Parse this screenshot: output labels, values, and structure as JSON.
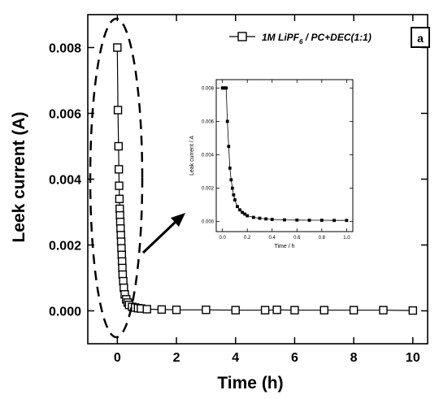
{
  "chart_data": [
    {
      "type": "scatter",
      "panel": "main",
      "title": "",
      "xlabel": "Time (h)",
      "ylabel": "Leek current (A)",
      "xlim": [
        -1,
        10.5
      ],
      "ylim": [
        -0.001,
        0.009
      ],
      "xticks": [
        0,
        2,
        4,
        6,
        8,
        10
      ],
      "xtick_labels": [
        "0",
        "2",
        "4",
        "6",
        "8",
        "10"
      ],
      "yticks": [
        0,
        0.002,
        0.004,
        0.006,
        0.008
      ],
      "ytick_labels": [
        "0.000",
        "0.002",
        "0.004",
        "0.006",
        "0.008"
      ],
      "legend": {
        "label": "1M LiPF6 / PC+DEC(1:1)",
        "label_main": "1M LiPF",
        "label_sub": "6",
        "label_rest": " / PC+DEC(1:1)",
        "position": "top-right",
        "marker": "open-square"
      },
      "panel_label": "a",
      "grid": false,
      "series": [
        {
          "label": "1M LiPF6 / PC+DEC(1:1)",
          "marker": "open-square",
          "x": [
            0,
            0.02,
            0.04,
            0.05,
            0.06,
            0.07,
            0.08,
            0.09,
            0.1,
            0.11,
            0.12,
            0.13,
            0.14,
            0.15,
            0.16,
            0.17,
            0.18,
            0.2,
            0.22,
            0.25,
            0.3,
            0.35,
            0.4,
            0.5,
            0.6,
            0.7,
            0.8,
            1.0,
            1.5,
            2,
            3,
            4,
            5,
            5.4,
            6,
            7,
            8,
            9,
            10
          ],
          "y": [
            0.008,
            0.0061,
            0.005,
            0.0043,
            0.0038,
            0.0034,
            0.0031,
            0.0029,
            0.0027,
            0.0025,
            0.0023,
            0.0021,
            0.0019,
            0.0017,
            0.0015,
            0.0013,
            0.0011,
            0.0009,
            0.0007,
            0.0005,
            0.00035,
            0.00025,
            0.00018,
            0.00012,
            0.0001,
            8e-05,
            7e-05,
            5e-05,
            4e-05,
            3e-05,
            3e-05,
            2e-05,
            2e-05,
            3e-05,
            2e-05,
            2e-05,
            2e-05,
            2e-05,
            1e-05
          ]
        }
      ],
      "annotations": [
        "dashed ellipse around t = 0 region",
        "arrow pointing from ellipse to inset"
      ]
    },
    {
      "type": "scatter",
      "panel": "inset",
      "title": "",
      "xlabel": "Time / h",
      "ylabel": "Leak current / A",
      "xlim": [
        -0.05,
        1.05
      ],
      "ylim": [
        -0.0006,
        0.0085
      ],
      "xticks": [
        0,
        0.2,
        0.4,
        0.6,
        0.8,
        1.0
      ],
      "xtick_labels": [
        "0.0",
        "0.2",
        "0.4",
        "0.6",
        "0.8",
        "1.0"
      ],
      "yticks": [
        0,
        0.002,
        0.004,
        0.006,
        0.008
      ],
      "ytick_labels": [
        "0.000",
        "0.002",
        "0.004",
        "0.006",
        "0.008"
      ],
      "series": [
        {
          "label": "",
          "marker": "small-square",
          "x": [
            0.0,
            0.005,
            0.01,
            0.02,
            0.03,
            0.04,
            0.05,
            0.06,
            0.07,
            0.08,
            0.09,
            0.1,
            0.12,
            0.14,
            0.16,
            0.18,
            0.2,
            0.25,
            0.3,
            0.35,
            0.4,
            0.5,
            0.6,
            0.7,
            0.8,
            0.9,
            1.0
          ],
          "y": [
            0.008,
            0.008,
            0.008,
            0.008,
            0.008,
            0.006,
            0.0045,
            0.0032,
            0.0025,
            0.002,
            0.0016,
            0.0013,
            0.0009,
            0.0007,
            0.00055,
            0.00045,
            0.00035,
            0.00025,
            0.0002,
            0.00016,
            0.00013,
            0.0001,
            9e-05,
            8e-05,
            8e-05,
            7e-05,
            7e-05
          ]
        }
      ]
    }
  ]
}
